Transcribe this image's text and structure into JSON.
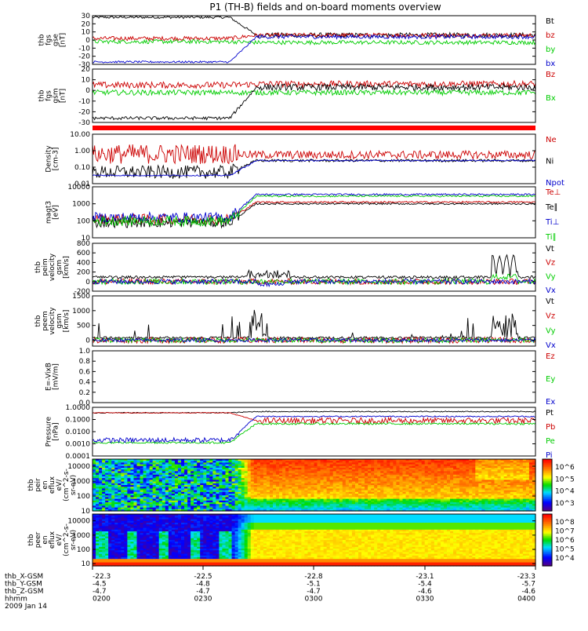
{
  "title": "P1 (TH-B) fields and on-board moments overview",
  "chart_data": [
    {
      "type": "line",
      "panel": "fgs_gse",
      "ylabel": [
        "thb",
        "fgs",
        "gse",
        "[nT]"
      ],
      "ylim": [
        -30,
        30
      ],
      "yticks": [
        "30",
        "20",
        "10",
        "0",
        "-10",
        "-20",
        "-30"
      ],
      "series": [
        {
          "name": "Bt",
          "color": "#000000",
          "kind": "Bt_gse"
        },
        {
          "name": "bz",
          "color": "#cc0000",
          "kind": "bz_gse"
        },
        {
          "name": "by",
          "color": "#00cc00",
          "kind": "by_gse"
        },
        {
          "name": "bx",
          "color": "#0000cc",
          "kind": "bx_gse"
        }
      ]
    },
    {
      "type": "line",
      "panel": "fgs_gsm",
      "ylabel": [
        "thb",
        "fgs",
        "gsm",
        "[nT]"
      ],
      "ylim": [
        -30,
        20
      ],
      "yticks": [
        "20",
        "10",
        "0",
        "-10",
        "-20",
        "-30"
      ],
      "series": [
        {
          "name": "Bz",
          "color": "#cc0000",
          "kind": "bz_gsm"
        },
        {
          "name": "Bx",
          "color": "#00cc00",
          "kind": "by_gsm"
        },
        {
          "name": "",
          "color": "#000000",
          "kind": "bx_gsm"
        }
      ]
    },
    {
      "type": "line",
      "panel": "density",
      "ylabel": [
        "Density",
        "[cm-3]"
      ],
      "scale": "log",
      "ylim": [
        0.01,
        10
      ],
      "yticks": [
        "10.00",
        "1.00",
        "0.10",
        "0.01"
      ],
      "series": [
        {
          "name": "Ne",
          "color": "#cc0000",
          "kind": "ne"
        },
        {
          "name": "Ni",
          "color": "#000000",
          "kind": "ni"
        },
        {
          "name": "Npot",
          "color": "#0000cc",
          "kind": "npot"
        }
      ]
    },
    {
      "type": "line",
      "panel": "temperature",
      "ylabel": [
        "magt3",
        "[eV]"
      ],
      "scale": "log",
      "ylim": [
        10,
        10000
      ],
      "yticks": [
        "10000",
        "1000",
        "100",
        "10"
      ],
      "series": [
        {
          "name": "Te⊥",
          "color": "#cc0000",
          "kind": "teperp"
        },
        {
          "name": "Te∥",
          "color": "#000000",
          "kind": "tepar"
        },
        {
          "name": "Ti⊥",
          "color": "#0000cc",
          "kind": "tiperp"
        },
        {
          "name": "Ti∥",
          "color": "#00cc00",
          "kind": "tipar"
        }
      ]
    },
    {
      "type": "line",
      "panel": "peim_velocity",
      "ylabel": [
        "thb",
        "peim",
        "velocity",
        "gsm",
        "[km/s]"
      ],
      "ylim": [
        -200,
        800
      ],
      "yticks": [
        "800",
        "600",
        "400",
        "200",
        "0",
        "-200"
      ],
      "series": [
        {
          "name": "Vt",
          "color": "#000000",
          "kind": "vt_i"
        },
        {
          "name": "Vz",
          "color": "#cc0000",
          "kind": "vz_i"
        },
        {
          "name": "Vy",
          "color": "#00cc00",
          "kind": "vy_i"
        },
        {
          "name": "Vx",
          "color": "#0000cc",
          "kind": "vx_i"
        }
      ]
    },
    {
      "type": "line",
      "panel": "peem_velocity",
      "ylabel": [
        "thb",
        "peem",
        "velocity",
        "gsm",
        "[km/s]"
      ],
      "ylim": [
        -200,
        1500
      ],
      "yticks": [
        "1500",
        "1000",
        "500",
        "0"
      ],
      "series": [
        {
          "name": "Vt",
          "color": "#000000",
          "kind": "vt_e"
        },
        {
          "name": "Vz",
          "color": "#cc0000",
          "kind": "vz_e"
        },
        {
          "name": "Vy",
          "color": "#00cc00",
          "kind": "vy_e"
        },
        {
          "name": "Vx",
          "color": "#0000cc",
          "kind": "vx_e"
        }
      ]
    },
    {
      "type": "line",
      "panel": "efield",
      "ylabel": [
        "E=-VixB",
        "[mV/m]"
      ],
      "ylim": [
        0,
        1
      ],
      "yticks": [
        "1.0",
        "0.8",
        "0.6",
        "0.4",
        "0.2",
        "0.0"
      ],
      "series": [
        {
          "name": "Ez",
          "color": "#cc0000",
          "kind": "none"
        },
        {
          "name": "Ey",
          "color": "#00cc00",
          "kind": "none"
        },
        {
          "name": "Ex",
          "color": "#0000cc",
          "kind": "none"
        }
      ]
    },
    {
      "type": "line",
      "panel": "pressure",
      "ylabel": [
        "Pressure",
        "[nPa]"
      ],
      "scale": "log",
      "ylim": [
        0.0001,
        1
      ],
      "yticks": [
        "1.0000",
        "0.1000",
        "0.0100",
        "0.0010",
        "0.0001"
      ],
      "series": [
        {
          "name": "Pt",
          "color": "#000000",
          "kind": "pt"
        },
        {
          "name": "Pb",
          "color": "#cc0000",
          "kind": "pb"
        },
        {
          "name": "Pe",
          "color": "#00cc00",
          "kind": "pe"
        },
        {
          "name": "Pi",
          "color": "#0000cc",
          "kind": "pi"
        }
      ]
    },
    {
      "type": "heatmap",
      "panel": "peir_spectrogram",
      "ylabel": [
        "thb",
        "peir",
        "en",
        "eflux",
        "eV/",
        "(cm^2-s-",
        "sr-eV)"
      ],
      "scale": "log",
      "ylim": [
        10,
        30000
      ],
      "yticks": [
        "10000",
        "1000",
        "100",
        "10"
      ],
      "colorbar": {
        "ticks": [
          "10^6",
          "10^5",
          "10^4",
          "10^3"
        ]
      }
    },
    {
      "type": "heatmap",
      "panel": "peer_spectrogram",
      "ylabel": [
        "thb",
        "peer",
        "en",
        "eflux",
        "eV/",
        "(cm^2-s-",
        "sr-eV)"
      ],
      "scale": "log",
      "ylim": [
        7,
        30000
      ],
      "yticks": [
        "10000",
        "1000",
        "100",
        "10"
      ],
      "colorbar": {
        "ticks": [
          "10^8",
          "10^7",
          "10^6",
          "10^5",
          "10^4"
        ]
      }
    }
  ],
  "xaxis": {
    "labels": [
      "thb_X-GSM",
      "thb_Y-GSM",
      "thb_Z-GSM",
      "hhmm",
      "2009 Jan 14"
    ],
    "columns": [
      [
        "-22.3",
        "-4.5",
        "-4.7",
        "0200"
      ],
      [
        "-22.5",
        "-4.8",
        "-4.7",
        "0230"
      ],
      [
        "-22.8",
        "-5.1",
        "-4.7",
        "0300"
      ],
      [
        "-23.1",
        "-5.4",
        "-4.6",
        "0330"
      ],
      [
        "-23.3",
        "-5.7",
        "-4.6",
        "0400"
      ]
    ]
  },
  "colors": {
    "red": "#ff0000",
    "black": "#000000",
    "green": "#00cc00",
    "blue": "#0000cc"
  }
}
